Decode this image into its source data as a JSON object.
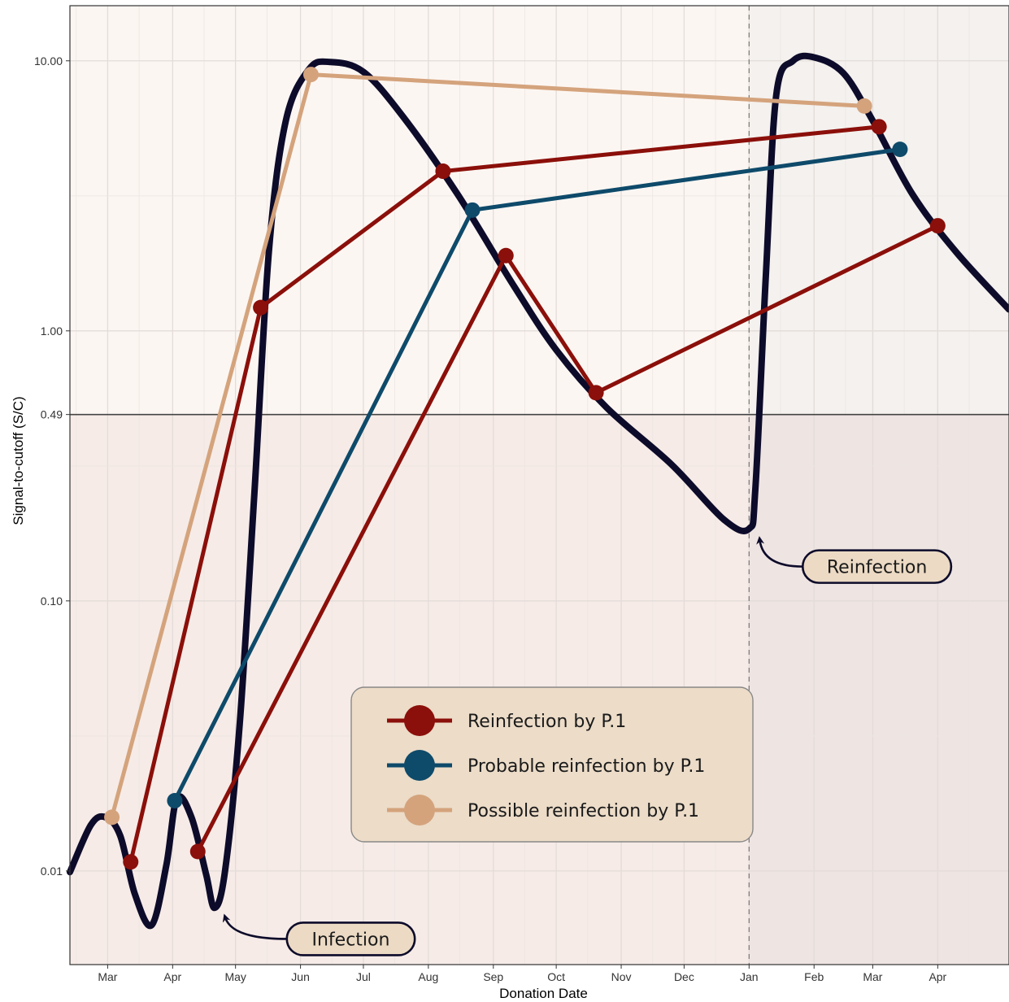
{
  "chart_data": {
    "type": "line",
    "xlabel": "Donation Date",
    "ylabel": "Signal-to-cutoff (S/C)",
    "y_scale": "log",
    "ylim": [
      0.0045,
      16
    ],
    "xlim": [
      "2020-02-12",
      "2021-05-05"
    ],
    "x_ticks": [
      {
        "date": "2020-03-01",
        "label": "Mar"
      },
      {
        "date": "2020-04-01",
        "label": "Apr"
      },
      {
        "date": "2020-05-01",
        "label": "May"
      },
      {
        "date": "2020-06-01",
        "label": "Jun"
      },
      {
        "date": "2020-07-01",
        "label": "Jul"
      },
      {
        "date": "2020-08-01",
        "label": "Aug"
      },
      {
        "date": "2020-09-01",
        "label": "Sep"
      },
      {
        "date": "2020-10-01",
        "label": "Oct"
      },
      {
        "date": "2020-11-01",
        "label": "Nov"
      },
      {
        "date": "2020-12-01",
        "label": "Dec"
      },
      {
        "date": "2021-01-01",
        "label": "Jan"
      },
      {
        "date": "2021-02-01",
        "label": "Feb"
      },
      {
        "date": "2021-03-01",
        "label": "Mar"
      },
      {
        "date": "2021-04-01",
        "label": "Apr"
      }
    ],
    "y_ticks": [
      {
        "value": 0.01,
        "label": "0.01"
      },
      {
        "value": 0.1,
        "label": "0.10"
      },
      {
        "value": 0.49,
        "label": "0.49"
      },
      {
        "value": 1.0,
        "label": "1.00"
      },
      {
        "value": 10.0,
        "label": "10.00"
      }
    ],
    "cutoff": 0.49,
    "reinfection_marker_date": "2021-01-01",
    "background": {
      "above_cutoff": "#fcf6f2",
      "below_cutoff": "#f6ebe7",
      "after_marker_above": "#f4f1ee",
      "after_marker_below": "#eee4e2"
    },
    "trend_curve": {
      "color": "#0d0b2a",
      "points": [
        [
          "2020-02-12",
          0.0099
        ],
        [
          "2020-02-22",
          0.0148
        ],
        [
          "2020-02-29",
          0.0158
        ],
        [
          "2020-03-07",
          0.0135
        ],
        [
          "2020-03-14",
          0.0082
        ],
        [
          "2020-03-22",
          0.0063
        ],
        [
          "2020-03-29",
          0.0105
        ],
        [
          "2020-04-03",
          0.0185
        ],
        [
          "2020-04-10",
          0.0158
        ],
        [
          "2020-04-17",
          0.0097
        ],
        [
          "2020-04-21",
          0.0073
        ],
        [
          "2020-04-26",
          0.01
        ],
        [
          "2020-05-03",
          0.035
        ],
        [
          "2020-05-10",
          0.25
        ],
        [
          "2020-05-17",
          2.0
        ],
        [
          "2020-05-25",
          6.0
        ],
        [
          "2020-06-05",
          9.3
        ],
        [
          "2020-06-15",
          9.9
        ],
        [
          "2020-07-01",
          9.1
        ],
        [
          "2020-07-20",
          6.2
        ],
        [
          "2020-08-15",
          3.2
        ],
        [
          "2020-09-10",
          1.5
        ],
        [
          "2020-10-01",
          0.85
        ],
        [
          "2020-10-25",
          0.52
        ],
        [
          "2020-11-25",
          0.32
        ],
        [
          "2020-12-20",
          0.2
        ],
        [
          "2021-01-01",
          0.185
        ],
        [
          "2021-01-04",
          0.26
        ],
        [
          "2021-01-09",
          1.6
        ],
        [
          "2021-01-14",
          7.5
        ],
        [
          "2021-01-22",
          10.0
        ],
        [
          "2021-02-01",
          10.3
        ],
        [
          "2021-02-15",
          9.0
        ],
        [
          "2021-03-01",
          6.0
        ],
        [
          "2021-03-20",
          3.2
        ],
        [
          "2021-04-10",
          1.95
        ],
        [
          "2021-05-05",
          1.2
        ]
      ]
    },
    "series": [
      {
        "name": "Reinfection by P.1",
        "color": "#8b0f0a",
        "paths": [
          [
            [
              "2020-03-12",
              0.0108
            ],
            [
              "2020-05-13",
              1.22
            ],
            [
              "2020-08-08",
              3.9
            ],
            [
              "2021-03-04",
              5.7
            ]
          ],
          [
            [
              "2020-04-13",
              0.0118
            ],
            [
              "2020-09-07",
              1.9
            ],
            [
              "2020-10-20",
              0.59
            ],
            [
              "2021-04-01",
              2.45
            ]
          ]
        ]
      },
      {
        "name": "Probable reinfection  by P.1",
        "color": "#0e4a6a",
        "paths": [
          [
            [
              "2020-04-02",
              0.0182
            ],
            [
              "2020-08-22",
              2.8
            ],
            [
              "2021-03-14",
              4.7
            ]
          ]
        ]
      },
      {
        "name": "Possible reinfection  by P.1",
        "color": "#d4a37c",
        "paths": [
          [
            [
              "2020-03-03",
              0.0158
            ],
            [
              "2020-06-06",
              8.9
            ],
            [
              "2021-02-25",
              6.8
            ]
          ]
        ]
      }
    ],
    "annotations": [
      {
        "text": "Infection",
        "point_date": "2020-04-23",
        "point_value": 0.0072,
        "label_date": "2020-06-25",
        "label_value": 0.0056
      },
      {
        "text": "Reinfection",
        "point_date": "2021-01-03",
        "point_value": 0.18,
        "label_date": "2021-03-03",
        "label_value": 0.134
      }
    ],
    "legend_position": "lower-center"
  }
}
